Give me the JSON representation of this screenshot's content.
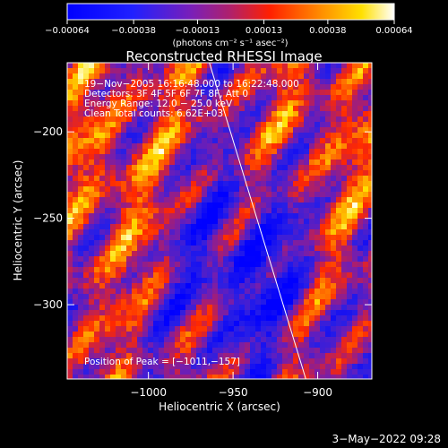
{
  "chart_data": {
    "type": "heatmap",
    "title": "Reconstructed RHESSI Image",
    "xlabel": "Heliocentric X (arcsec)",
    "ylabel": "Heliocentric Y (arcsec)",
    "xlim": [
      -1048,
      -868
    ],
    "ylim": [
      -343,
      -160
    ],
    "x_ticks": [
      {
        "value": -1000,
        "label": "−1000"
      },
      {
        "value": -950,
        "label": "−950"
      },
      {
        "value": -900,
        "label": "−900"
      }
    ],
    "y_ticks": [
      {
        "value": -200,
        "label": "−200"
      },
      {
        "value": -250,
        "label": "−250"
      },
      {
        "value": -300,
        "label": "−300"
      }
    ],
    "colorbar": {
      "range": [
        -0.00064,
        0.00064
      ],
      "ticks": [
        {
          "value": -0.00064,
          "label": "−0.00064"
        },
        {
          "value": -0.00038,
          "label": "−0.00038"
        },
        {
          "value": -0.00013,
          "label": "−0.00013"
        },
        {
          "value": 0.00013,
          "label": "0.00013"
        },
        {
          "value": 0.00038,
          "label": "0.00038"
        },
        {
          "value": 0.00064,
          "label": "0.00064"
        }
      ],
      "unit_label": "(photons cm⁻² s⁻¹ asec⁻²)",
      "colormap": "blue-purple-red-yellow-white"
    },
    "info_lines": [
      "19−Nov−2005 16:16:48.000 to 16:22:48.000",
      "Detectors: 3F 4F 5F 6F 7F 8F, Att 0",
      "Energy Range: 12.0 − 25.0 keV",
      "Clean    Total counts: 6.62E+03"
    ],
    "peak_label": "Position of Peak = [−1011,−157]",
    "limb_line": {
      "x1": -964,
      "y1": -160,
      "x2": -907,
      "y2": -343
    }
  },
  "footer": {
    "date": "3−May−2022 09:28"
  }
}
